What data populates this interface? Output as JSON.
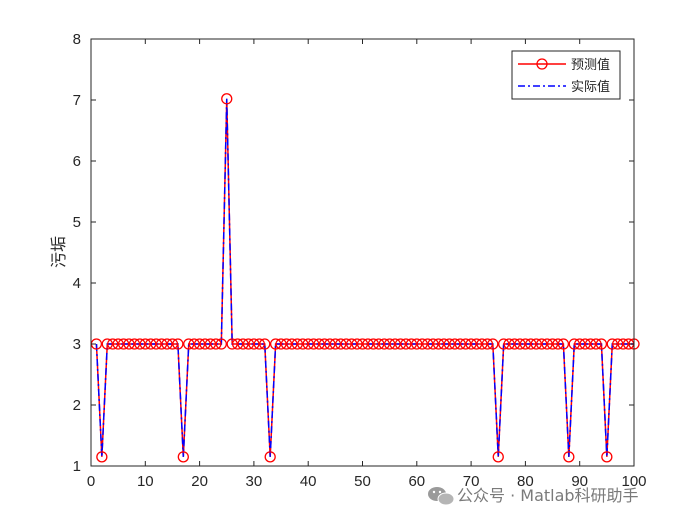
{
  "chart_data": {
    "type": "line",
    "title": "",
    "xlabel": "",
    "ylabel": "污垢",
    "xlim": [
      0,
      100
    ],
    "ylim": [
      1,
      8
    ],
    "x_ticks": [
      0,
      10,
      20,
      30,
      40,
      50,
      60,
      70,
      80,
      90,
      100
    ],
    "y_ticks": [
      1,
      2,
      3,
      4,
      5,
      6,
      7,
      8
    ],
    "grid": false,
    "legend_position": "top-right",
    "x": [
      1,
      2,
      3,
      4,
      5,
      6,
      7,
      8,
      9,
      10,
      11,
      12,
      13,
      14,
      15,
      16,
      17,
      18,
      19,
      20,
      21,
      22,
      23,
      24,
      25,
      26,
      27,
      28,
      29,
      30,
      31,
      32,
      33,
      34,
      35,
      36,
      37,
      38,
      39,
      40,
      41,
      42,
      43,
      44,
      45,
      46,
      47,
      48,
      49,
      50,
      51,
      52,
      53,
      54,
      55,
      56,
      57,
      58,
      59,
      60,
      61,
      62,
      63,
      64,
      65,
      66,
      67,
      68,
      69,
      70,
      71,
      72,
      73,
      74,
      75,
      76,
      77,
      78,
      79,
      80,
      81,
      82,
      83,
      84,
      85,
      86,
      87,
      88,
      89,
      90,
      91,
      92,
      93,
      94,
      95,
      96,
      97,
      98,
      99,
      100
    ],
    "series": [
      {
        "name": "预测值",
        "color": "#ff0000",
        "style": "solid line with open circle markers",
        "values": [
          3,
          1.15,
          3,
          3,
          3,
          3,
          3,
          3,
          3,
          3,
          3,
          3,
          3,
          3,
          3,
          3,
          1.15,
          3,
          3,
          3,
          3,
          3,
          3,
          3,
          7.02,
          3,
          3,
          3,
          3,
          3,
          3,
          3,
          1.15,
          3,
          3,
          3,
          3,
          3,
          3,
          3,
          3,
          3,
          3,
          3,
          3,
          3,
          3,
          3,
          3,
          3,
          3,
          3,
          3,
          3,
          3,
          3,
          3,
          3,
          3,
          3,
          3,
          3,
          3,
          3,
          3,
          3,
          3,
          3,
          3,
          3,
          3,
          3,
          3,
          3,
          1.15,
          3,
          3,
          3,
          3,
          3,
          3,
          3,
          3,
          3,
          3,
          3,
          3,
          1.15,
          3,
          3,
          3,
          3,
          3,
          3,
          1.15,
          3,
          3,
          3,
          3,
          3
        ]
      },
      {
        "name": "实际值",
        "color": "#0000ff",
        "style": "dash-dot line",
        "values": [
          3,
          1.15,
          3,
          3,
          3,
          3,
          3,
          3,
          3,
          3,
          3,
          3,
          3,
          3,
          3,
          3,
          1.15,
          3,
          3,
          3,
          3,
          3,
          3,
          3,
          7.02,
          3,
          3,
          3,
          3,
          3,
          3,
          3,
          1.15,
          3,
          3,
          3,
          3,
          3,
          3,
          3,
          3,
          3,
          3,
          3,
          3,
          3,
          3,
          3,
          3,
          3,
          3,
          3,
          3,
          3,
          3,
          3,
          3,
          3,
          3,
          3,
          3,
          3,
          3,
          3,
          3,
          3,
          3,
          3,
          3,
          3,
          3,
          3,
          3,
          3,
          1.15,
          3,
          3,
          3,
          3,
          3,
          3,
          3,
          3,
          3,
          3,
          3,
          3,
          1.15,
          3,
          3,
          3,
          3,
          3,
          3,
          1.15,
          3,
          3,
          3,
          3,
          3
        ]
      }
    ]
  },
  "watermark": {
    "text": "公众号 · Matlab科研助手",
    "icon": "wechat-icon"
  }
}
